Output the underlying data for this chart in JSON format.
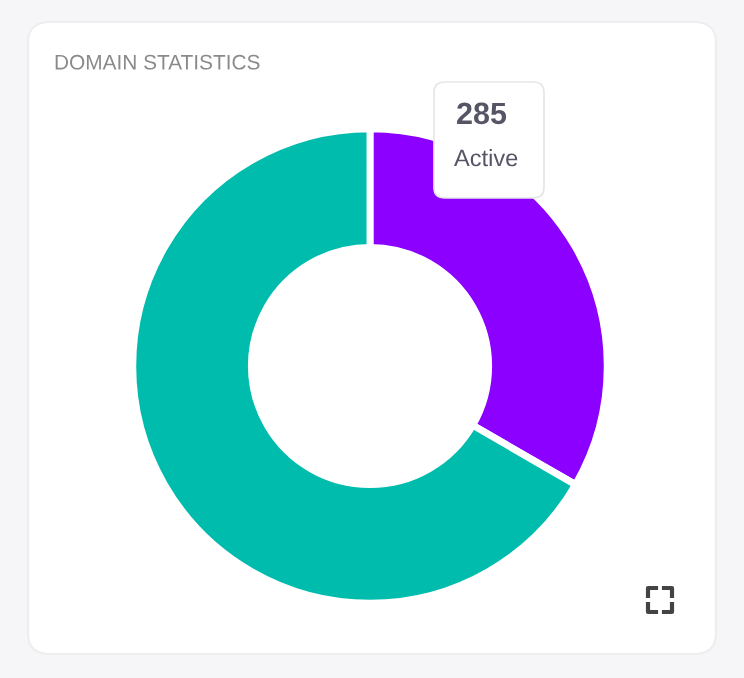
{
  "chart_data": {
    "type": "donut",
    "title": "DOMAIN STATISTICS",
    "categories": [
      "Active",
      null
    ],
    "values": [
      285,
      570
    ],
    "colors": [
      "#8b00ff",
      "#00bcad"
    ],
    "value_labels": [
      "285",
      null
    ],
    "legend": false
  }
}
